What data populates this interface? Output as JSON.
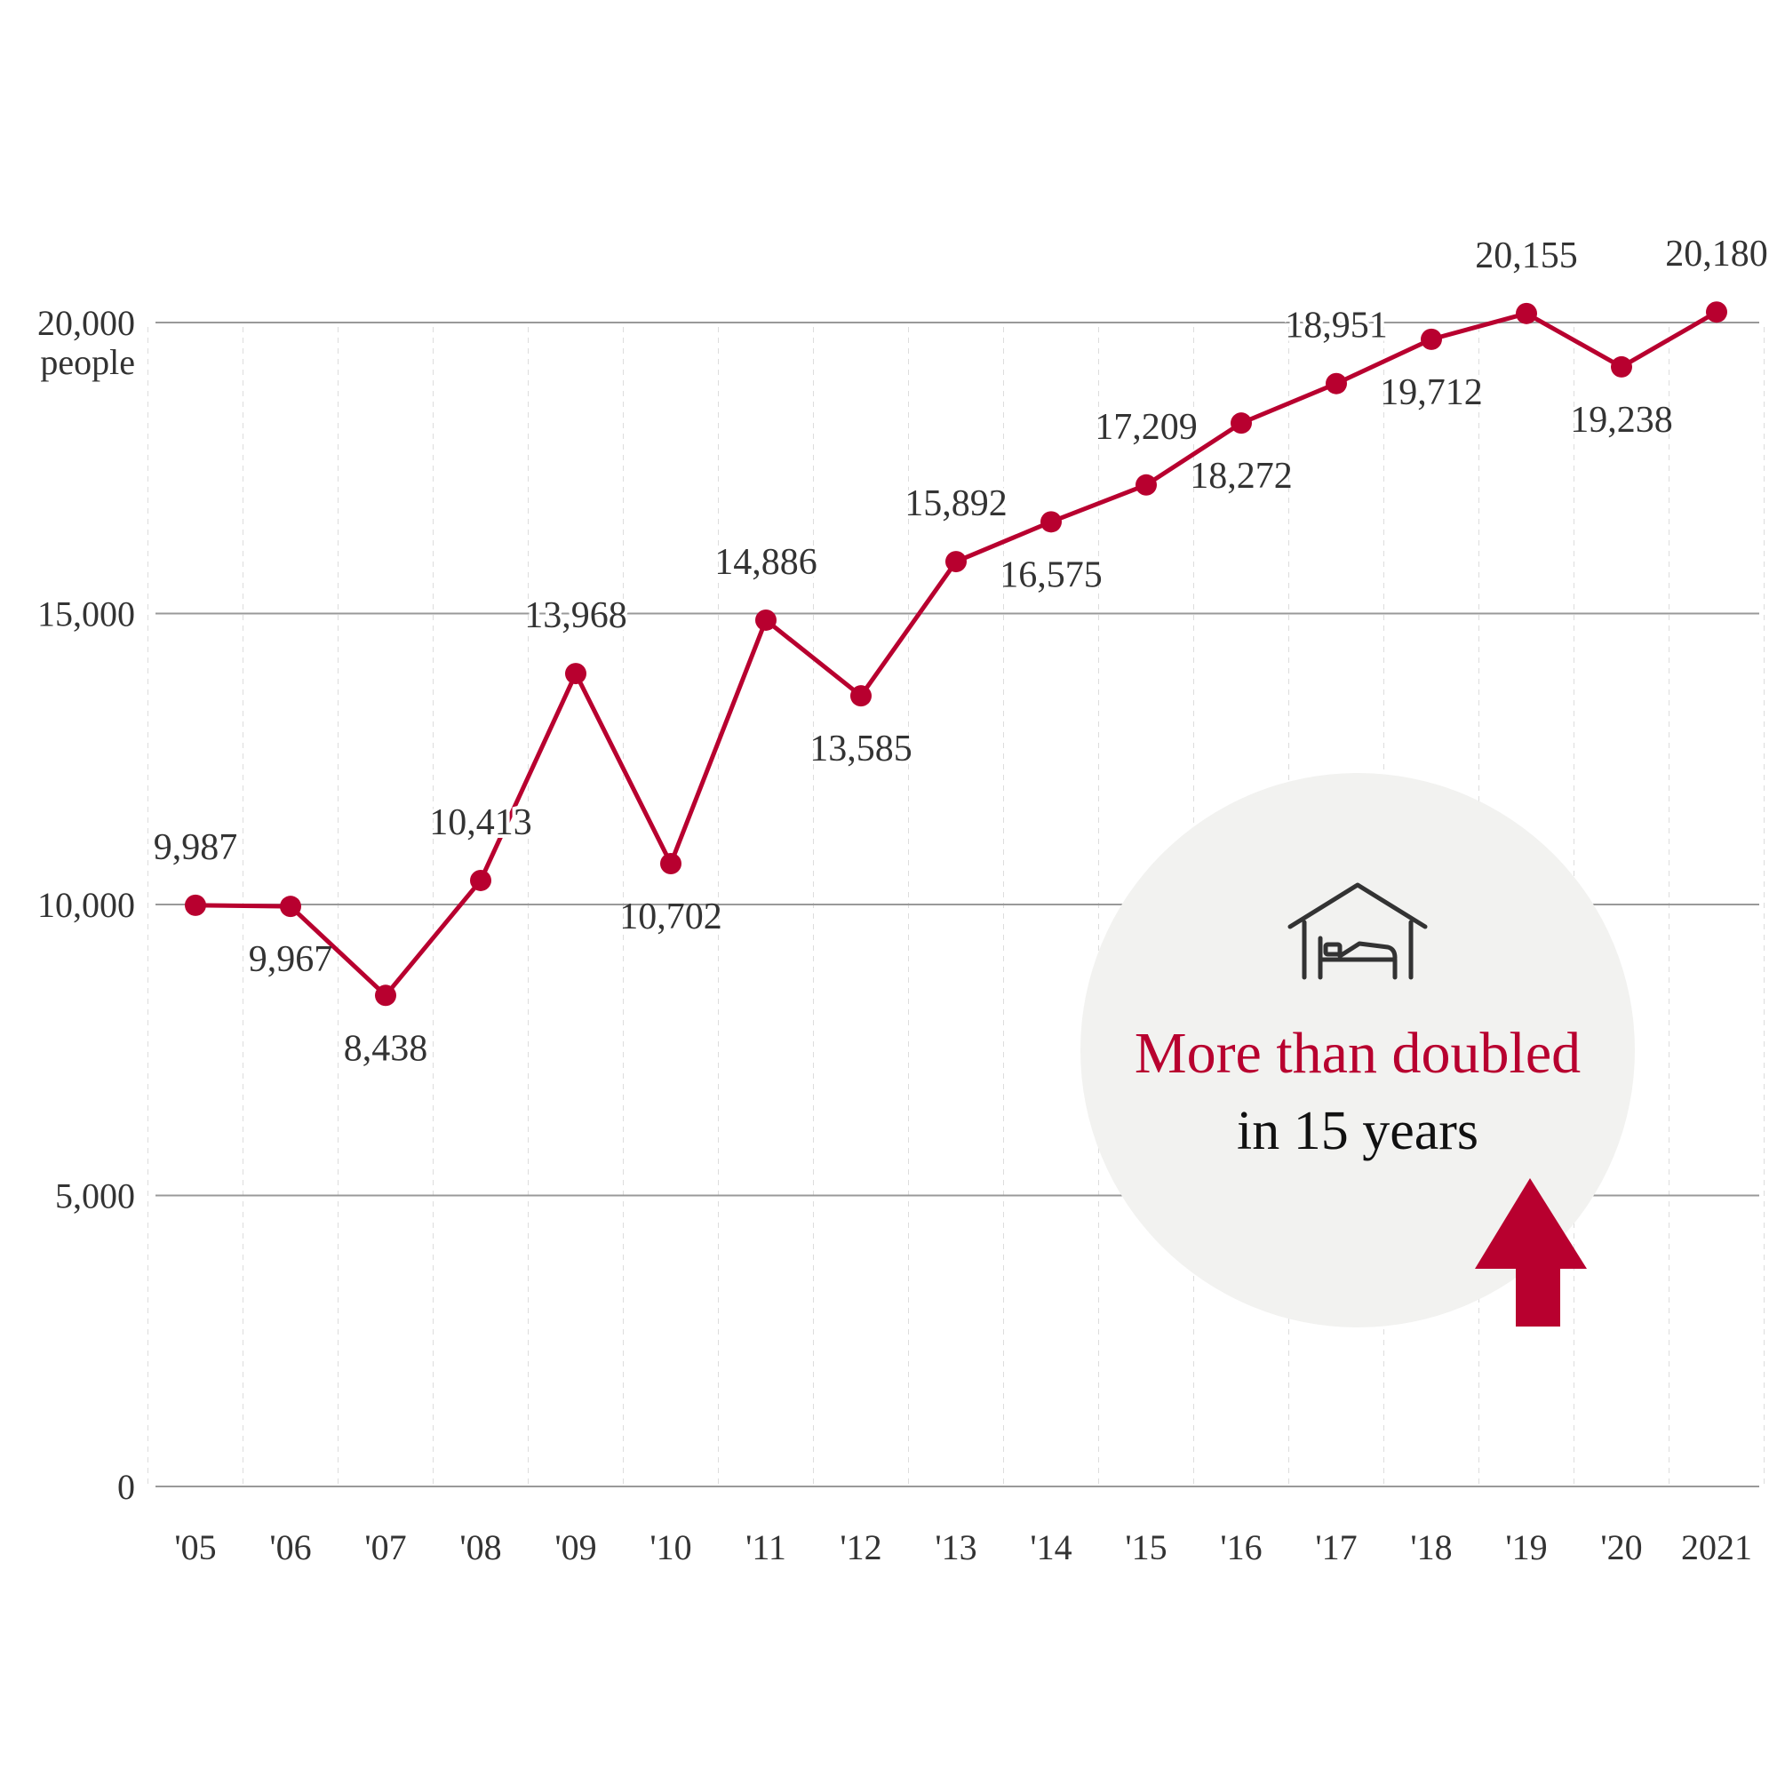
{
  "chart_data": {
    "type": "line",
    "title": "",
    "xlabel": "",
    "ylabel": "people",
    "categories": [
      "'05",
      "'06",
      "'07",
      "'08",
      "'09",
      "'10",
      "'11",
      "'12",
      "'13",
      "'14",
      "'15",
      "'16",
      "'17",
      "'18",
      "'19",
      "'20",
      "2021"
    ],
    "series": [
      {
        "values": [
          9987,
          9967,
          8438,
          10413,
          13968,
          10702,
          14886,
          13585,
          15892,
          16575,
          17209,
          18272,
          18951,
          19712,
          20155,
          19238,
          20180
        ],
        "labels": [
          "9,987",
          "9,967",
          "8,438",
          "10,413",
          "13,968",
          "10,702",
          "14,886",
          "13,585",
          "15,892",
          "16,575",
          "17,209",
          "18,272",
          "18,951",
          "19,712",
          "20,155",
          "19,238",
          "20,180"
        ],
        "label_side": [
          "above",
          "below",
          "below",
          "above",
          "above",
          "below",
          "above",
          "below",
          "above",
          "below",
          "above",
          "below",
          "above",
          "below",
          "above",
          "below",
          "above"
        ]
      }
    ],
    "y_ticks": [
      {
        "value": 0,
        "label": "0"
      },
      {
        "value": 5000,
        "label": "5,000"
      },
      {
        "value": 10000,
        "label": "10,000"
      },
      {
        "value": 15000,
        "label": "15,000"
      },
      {
        "value": 20000,
        "label": "20,000"
      }
    ],
    "y_unit": "people",
    "ylim": [
      0,
      20000
    ],
    "grid": true,
    "colors": {
      "line": "#B8002F",
      "grid": "#999999",
      "callout_bg": "#F2F2F0",
      "icon": "#333333"
    },
    "callout": {
      "icon": "house-bed-icon",
      "title": "More than doubled",
      "subtitle": "in 15 years",
      "arrow": "up-arrow-icon"
    }
  }
}
